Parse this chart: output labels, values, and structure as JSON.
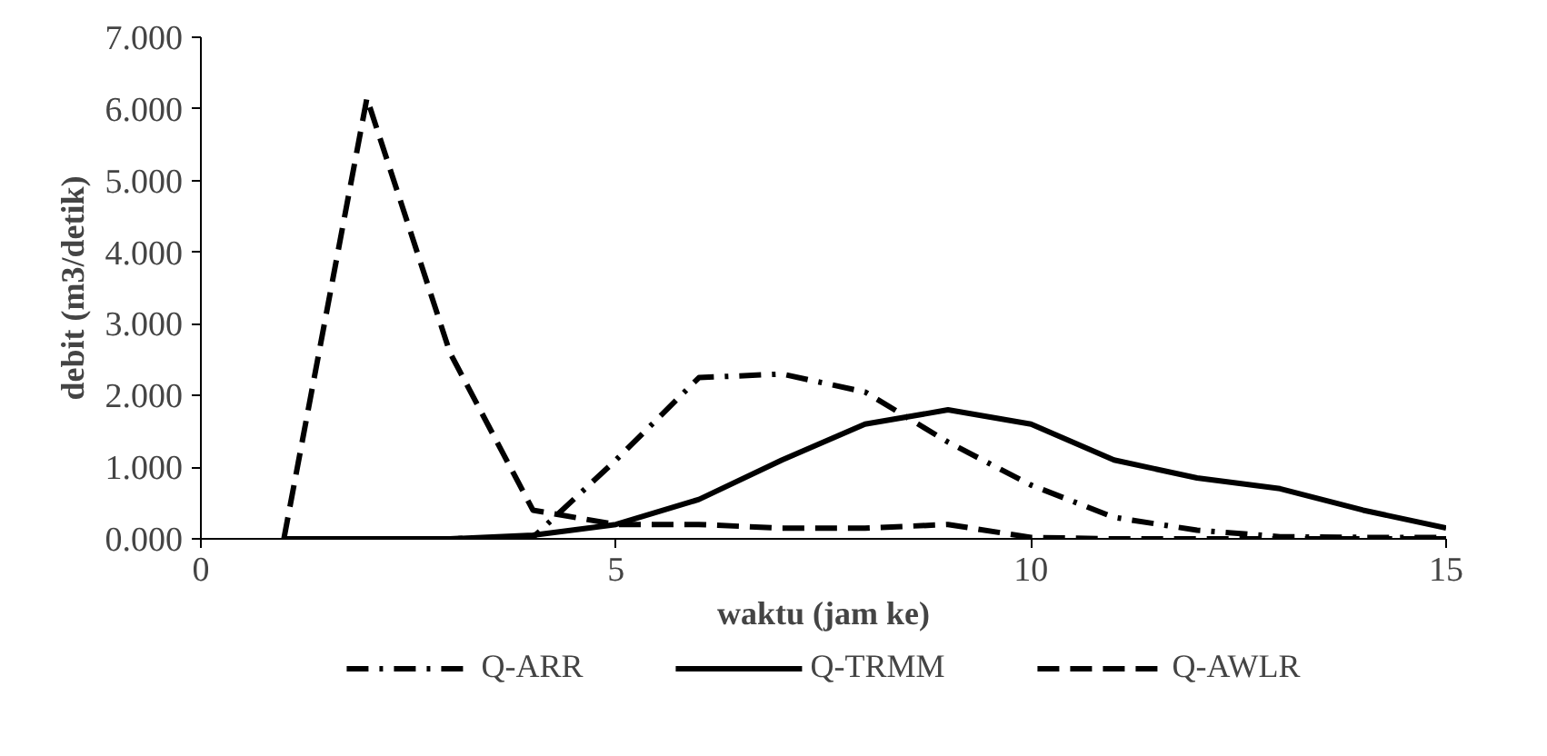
{
  "chart_data": {
    "type": "line",
    "xlabel": "waktu (jam ke)",
    "ylabel": "debit (m3/detik)",
    "x": [
      1,
      2,
      3,
      4,
      5,
      6,
      7,
      8,
      9,
      10,
      11,
      12,
      13,
      14,
      15
    ],
    "xlim": [
      0,
      15
    ],
    "xticks": [
      0,
      5,
      10,
      15
    ],
    "ylim": [
      0,
      7
    ],
    "yticks": [
      {
        "value": 0,
        "label": "0.000"
      },
      {
        "value": 1,
        "label": "1.000"
      },
      {
        "value": 2,
        "label": "2.000"
      },
      {
        "value": 3,
        "label": "3.000"
      },
      {
        "value": 4,
        "label": "4.000"
      },
      {
        "value": 5,
        "label": "5.000"
      },
      {
        "value": 6,
        "label": "6.000"
      },
      {
        "value": 7,
        "label": "7.000"
      }
    ],
    "grid": false,
    "legend": "bottom",
    "series": [
      {
        "name": "Q-ARR",
        "color": "#000000",
        "line_style": "dashdot",
        "values": [
          0,
          0,
          0,
          0.02,
          1.1,
          2.25,
          2.3,
          2.05,
          1.35,
          0.75,
          0.3,
          0.12,
          0.03,
          0.02,
          0.02
        ]
      },
      {
        "name": "Q-TRMM",
        "color": "#000000",
        "line_style": "solid",
        "values": [
          0,
          0,
          0,
          0.05,
          0.2,
          0.55,
          1.1,
          1.6,
          1.8,
          1.6,
          1.1,
          0.85,
          0.7,
          0.4,
          0.15
        ]
      },
      {
        "name": "Q-AWLR",
        "color": "#000000",
        "line_style": "dashed",
        "values": [
          0,
          6.15,
          2.6,
          0.4,
          0.2,
          0.2,
          0.15,
          0.15,
          0.2,
          0.02,
          0,
          0,
          0,
          0,
          0
        ]
      }
    ]
  }
}
